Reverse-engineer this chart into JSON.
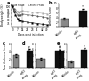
{
  "panel_a": {
    "title": "a",
    "xlabel": "Days post injection",
    "ylabel": "Body weight (%)",
    "acute_label": "Acute Phase",
    "chronic_label": "Chronic Phase",
    "days": [
      0,
      2,
      4,
      7,
      9,
      11,
      14,
      21,
      28,
      35,
      42,
      49
    ],
    "line1": [
      100,
      97,
      95,
      93,
      92,
      93,
      94,
      93,
      92,
      91,
      90,
      89
    ],
    "line2": [
      100,
      96,
      93,
      88,
      87,
      88,
      89,
      88,
      87,
      86,
      85,
      84
    ],
    "line3": [
      100,
      93,
      88,
      82,
      80,
      79,
      78,
      77,
      76,
      75,
      74,
      73
    ],
    "ylim": [
      70,
      105
    ],
    "yticks": [
      75,
      80,
      85,
      90,
      95,
      100
    ],
    "xlim": [
      -1,
      52
    ],
    "xticks": [
      0,
      7,
      14,
      21,
      28,
      35,
      42,
      49
    ],
    "acute_x": 7,
    "chronic_x": 33,
    "vline_x": 14,
    "line1_color": "#aaaaaa",
    "line2_color": "#555555",
    "line3_color": "#000000",
    "line1_marker": "s",
    "line2_marker": "o",
    "line3_marker": "s",
    "line1_style": "-",
    "line2_style": "-",
    "line3_style": "-"
  },
  "panel_b": {
    "title": "b",
    "ylabel": "Arthritis score",
    "categories": [
      "Vehicle",
      "αvβ3\nantag."
    ],
    "values": [
      3.5,
      7.0
    ],
    "bar_colors": [
      "#888888",
      "#111111"
    ],
    "ylim": [
      0,
      10
    ],
    "yticks": [
      0,
      2,
      4,
      6,
      8,
      10
    ],
    "error": [
      0.5,
      0.6
    ],
    "sig_y": 8.2
  },
  "panel_c": {
    "title": "c",
    "ylabel": "Paw thickness (mm)",
    "categories": [
      "Vehicle",
      "αvβ3\nantag."
    ],
    "values": [
      3.0,
      4.2
    ],
    "bar_colors": [
      "#888888",
      "#111111"
    ],
    "ylim": [
      0,
      6
    ],
    "yticks": [
      0,
      2,
      4,
      6
    ],
    "error": [
      0.3,
      0.35
    ],
    "sig_y": 4.8
  },
  "panel_d": {
    "title": "d",
    "ylabel": "Histology score",
    "categories": [
      "Vehicle",
      "αvβ3\nantag."
    ],
    "values": [
      2.8,
      5.5
    ],
    "bar_colors": [
      "#888888",
      "#111111"
    ],
    "ylim": [
      0,
      8
    ],
    "yticks": [
      0,
      2,
      4,
      6,
      8
    ],
    "error": [
      0.3,
      0.5
    ],
    "sig_y": 6.3
  },
  "panel_e": {
    "title": "e",
    "ylabel": "Bone erosion score",
    "categories": [
      "Vehicle",
      "αvβ3\nantag."
    ],
    "values": [
      1.5,
      4.5
    ],
    "bar_colors": [
      "#888888",
      "#111111"
    ],
    "ylim": [
      0,
      6
    ],
    "yticks": [
      0,
      2,
      4,
      6
    ],
    "error": [
      0.25,
      0.4
    ],
    "sig_y": 5.1
  },
  "sig_marker": "*",
  "background_color": "#ffffff"
}
